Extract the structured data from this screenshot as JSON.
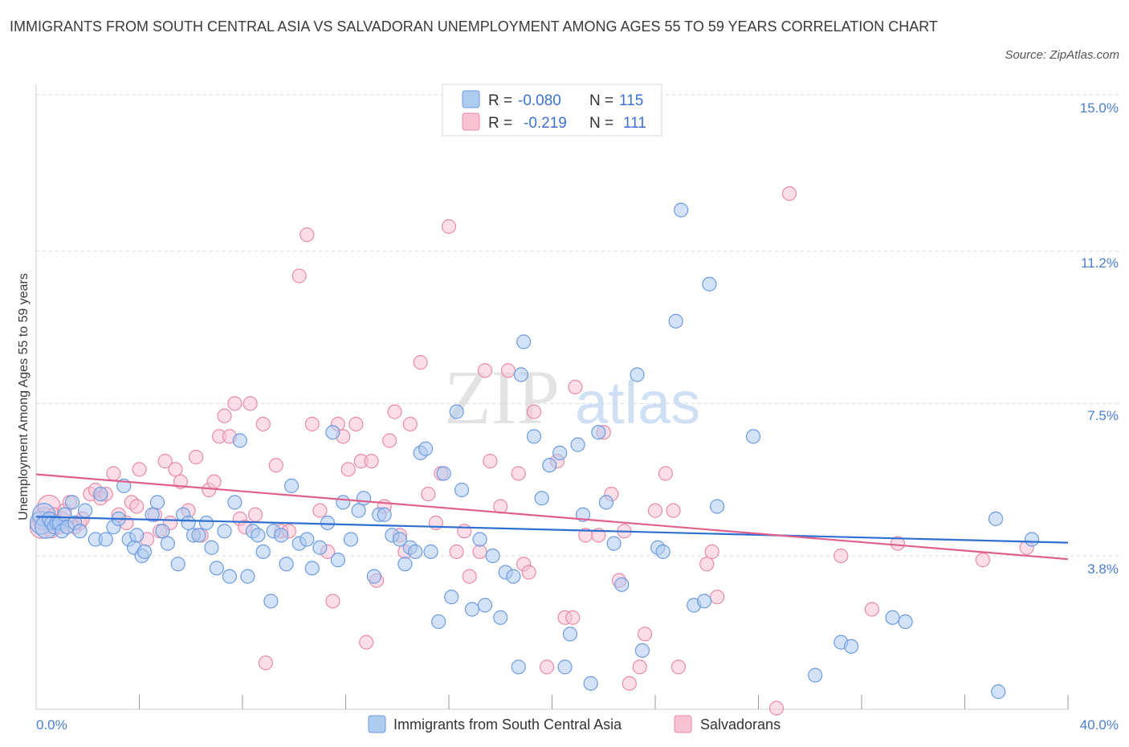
{
  "title": "IMMIGRANTS FROM SOUTH CENTRAL ASIA VS SALVADORAN UNEMPLOYMENT AMONG AGES 55 TO 59 YEARS CORRELATION CHART",
  "source": "Source: ZipAtlas.com",
  "watermark": {
    "zip": "ZIP",
    "atlas": "atlas"
  },
  "colors": {
    "blue_fill": "#aecbf0",
    "blue_stroke": "#6b9be0",
    "blue_line": "#2f6fd1",
    "pink_fill": "#f7c3d3",
    "pink_stroke": "#e88aa8",
    "pink_line": "#e0608d",
    "tick_text": "#4a7fd0",
    "grid": "#d8d8d8"
  },
  "legend": {
    "row1": {
      "r_label": "R =",
      "r_value": "-0.080",
      "n_label": "N =",
      "n_value": "115"
    },
    "row2": {
      "r_label": "R =",
      "r_value": "-0.219",
      "n_label": "N =",
      "n_value": "111"
    }
  },
  "chart_data": {
    "type": "scatter",
    "title": "IMMIGRANTS FROM SOUTH CENTRAL ASIA VS SALVADORAN UNEMPLOYMENT AMONG AGES 55 TO 59 YEARS CORRELATION CHART",
    "xlabel": "",
    "ylabel": "Unemployment Among Ages 55 to 59 years",
    "xlim": [
      0,
      40
    ],
    "ylim": [
      0,
      15.5
    ],
    "x_tick_labels": [
      "0.0%",
      "40.0%"
    ],
    "y_ticks": [
      3.8,
      7.5,
      11.2,
      15.0
    ],
    "y_tick_labels": [
      "3.8%",
      "7.5%",
      "11.2%",
      "15.0%"
    ],
    "series": [
      {
        "name": "Immigrants from South Central Asia",
        "r": -0.08,
        "n": 115,
        "trend": {
          "x": [
            0,
            40
          ],
          "y": [
            4.75,
            4.12
          ]
        },
        "points": [
          [
            0.2,
            4.6
          ],
          [
            0.3,
            4.8
          ],
          [
            0.4,
            4.5
          ],
          [
            0.5,
            4.7
          ],
          [
            0.6,
            4.6
          ],
          [
            0.7,
            4.5
          ],
          [
            0.8,
            4.6
          ],
          [
            0.9,
            4.6
          ],
          [
            1.0,
            4.4
          ],
          [
            1.1,
            4.8
          ],
          [
            1.2,
            4.5
          ],
          [
            1.4,
            5.1
          ],
          [
            1.5,
            4.6
          ],
          [
            1.7,
            4.4
          ],
          [
            1.9,
            4.9
          ],
          [
            2.3,
            4.2
          ],
          [
            2.5,
            5.3
          ],
          [
            2.7,
            4.2
          ],
          [
            3.0,
            4.5
          ],
          [
            3.2,
            4.7
          ],
          [
            3.4,
            5.5
          ],
          [
            3.6,
            4.2
          ],
          [
            3.8,
            4.0
          ],
          [
            3.9,
            4.3
          ],
          [
            4.1,
            3.8
          ],
          [
            4.2,
            3.9
          ],
          [
            4.5,
            4.8
          ],
          [
            4.7,
            5.1
          ],
          [
            4.9,
            4.4
          ],
          [
            5.1,
            4.1
          ],
          [
            5.5,
            3.6
          ],
          [
            5.7,
            4.8
          ],
          [
            5.9,
            4.6
          ],
          [
            6.1,
            4.3
          ],
          [
            6.3,
            4.3
          ],
          [
            6.6,
            4.6
          ],
          [
            6.8,
            4.0
          ],
          [
            7.0,
            3.5
          ],
          [
            7.3,
            4.4
          ],
          [
            7.5,
            3.3
          ],
          [
            7.7,
            5.1
          ],
          [
            7.9,
            6.6
          ],
          [
            8.2,
            3.3
          ],
          [
            8.4,
            4.4
          ],
          [
            8.6,
            4.3
          ],
          [
            8.8,
            3.9
          ],
          [
            9.1,
            2.7
          ],
          [
            9.2,
            4.4
          ],
          [
            9.5,
            4.3
          ],
          [
            9.7,
            3.6
          ],
          [
            9.9,
            5.5
          ],
          [
            10.2,
            4.1
          ],
          [
            10.5,
            4.2
          ],
          [
            10.7,
            3.5
          ],
          [
            11.0,
            4.0
          ],
          [
            11.3,
            4.6
          ],
          [
            11.5,
            6.8
          ],
          [
            11.7,
            3.7
          ],
          [
            11.9,
            5.1
          ],
          [
            12.2,
            4.2
          ],
          [
            12.5,
            4.9
          ],
          [
            12.7,
            5.2
          ],
          [
            13.1,
            3.3
          ],
          [
            13.3,
            4.8
          ],
          [
            13.5,
            4.8
          ],
          [
            13.8,
            4.3
          ],
          [
            14.1,
            4.2
          ],
          [
            14.3,
            3.6
          ],
          [
            14.5,
            4.0
          ],
          [
            14.7,
            3.9
          ],
          [
            14.9,
            6.3
          ],
          [
            15.1,
            6.4
          ],
          [
            15.3,
            3.9
          ],
          [
            15.6,
            2.2
          ],
          [
            15.8,
            5.8
          ],
          [
            16.1,
            2.8
          ],
          [
            16.3,
            7.3
          ],
          [
            16.5,
            5.4
          ],
          [
            16.9,
            2.5
          ],
          [
            17.2,
            4.2
          ],
          [
            17.4,
            2.6
          ],
          [
            17.7,
            3.8
          ],
          [
            18.0,
            2.3
          ],
          [
            18.2,
            3.4
          ],
          [
            18.8,
            8.2
          ],
          [
            18.5,
            3.3
          ],
          [
            18.9,
            9.0
          ],
          [
            19.3,
            6.7
          ],
          [
            19.6,
            5.2
          ],
          [
            18.7,
            1.1
          ],
          [
            19.9,
            6.0
          ],
          [
            20.3,
            6.3
          ],
          [
            20.5,
            1.1
          ],
          [
            20.7,
            1.9
          ],
          [
            21.2,
            4.8
          ],
          [
            21.0,
            6.5
          ],
          [
            21.5,
            0.7
          ],
          [
            21.8,
            6.8
          ],
          [
            22.1,
            5.1
          ],
          [
            22.4,
            4.1
          ],
          [
            22.7,
            3.1
          ],
          [
            23.3,
            8.2
          ],
          [
            23.5,
            1.5
          ],
          [
            24.1,
            4.0
          ],
          [
            24.3,
            3.9
          ],
          [
            25.0,
            12.2
          ],
          [
            24.8,
            9.5
          ],
          [
            26.1,
            10.4
          ],
          [
            25.5,
            2.6
          ],
          [
            25.9,
            2.7
          ],
          [
            26.4,
            5.0
          ],
          [
            27.8,
            6.7
          ],
          [
            30.2,
            0.9
          ],
          [
            31.2,
            1.7
          ],
          [
            31.6,
            1.6
          ],
          [
            33.2,
            2.3
          ],
          [
            33.7,
            2.2
          ],
          [
            37.2,
            4.7
          ],
          [
            37.3,
            0.5
          ],
          [
            38.6,
            4.2
          ]
        ]
      },
      {
        "name": "Salvadorans",
        "r": -0.219,
        "n": 111,
        "trend": {
          "x": [
            0,
            40
          ],
          "y": [
            5.78,
            3.72
          ]
        },
        "points": [
          [
            0.2,
            4.5
          ],
          [
            0.3,
            4.7
          ],
          [
            0.5,
            5.0
          ],
          [
            0.6,
            4.4
          ],
          [
            0.7,
            4.8
          ],
          [
            0.8,
            4.6
          ],
          [
            0.9,
            4.5
          ],
          [
            1.0,
            4.7
          ],
          [
            1.1,
            4.9
          ],
          [
            1.3,
            5.1
          ],
          [
            1.5,
            4.5
          ],
          [
            1.7,
            4.6
          ],
          [
            1.8,
            4.7
          ],
          [
            2.1,
            5.3
          ],
          [
            2.3,
            5.4
          ],
          [
            2.5,
            5.2
          ],
          [
            2.7,
            5.3
          ],
          [
            3.0,
            5.8
          ],
          [
            3.2,
            4.8
          ],
          [
            3.5,
            4.6
          ],
          [
            3.7,
            5.1
          ],
          [
            3.9,
            5.0
          ],
          [
            4.0,
            5.9
          ],
          [
            4.3,
            4.2
          ],
          [
            4.6,
            4.8
          ],
          [
            4.8,
            4.4
          ],
          [
            5.0,
            6.1
          ],
          [
            5.2,
            4.6
          ],
          [
            5.4,
            5.9
          ],
          [
            5.6,
            5.6
          ],
          [
            5.9,
            4.9
          ],
          [
            6.2,
            6.2
          ],
          [
            6.4,
            4.3
          ],
          [
            6.7,
            5.4
          ],
          [
            6.9,
            5.6
          ],
          [
            7.1,
            6.7
          ],
          [
            7.3,
            7.2
          ],
          [
            7.5,
            6.7
          ],
          [
            7.7,
            7.5
          ],
          [
            7.9,
            4.7
          ],
          [
            8.1,
            4.5
          ],
          [
            8.3,
            7.5
          ],
          [
            8.5,
            4.8
          ],
          [
            8.8,
            7.0
          ],
          [
            8.9,
            1.2
          ],
          [
            9.3,
            6.0
          ],
          [
            9.5,
            4.4
          ],
          [
            9.8,
            4.4
          ],
          [
            10.2,
            10.6
          ],
          [
            10.5,
            11.6
          ],
          [
            10.7,
            7.0
          ],
          [
            11.0,
            4.9
          ],
          [
            11.3,
            3.9
          ],
          [
            11.5,
            2.7
          ],
          [
            11.7,
            7.0
          ],
          [
            11.9,
            6.7
          ],
          [
            12.1,
            5.9
          ],
          [
            12.4,
            7.0
          ],
          [
            12.6,
            6.1
          ],
          [
            12.8,
            1.7
          ],
          [
            13.0,
            6.1
          ],
          [
            13.2,
            3.2
          ],
          [
            13.5,
            5.0
          ],
          [
            13.7,
            6.6
          ],
          [
            13.9,
            7.3
          ],
          [
            14.1,
            4.3
          ],
          [
            14.3,
            3.9
          ],
          [
            14.5,
            7.0
          ],
          [
            14.9,
            8.5
          ],
          [
            15.2,
            5.3
          ],
          [
            15.5,
            4.6
          ],
          [
            15.7,
            5.8
          ],
          [
            16.0,
            11.8
          ],
          [
            16.3,
            3.9
          ],
          [
            16.6,
            4.4
          ],
          [
            16.8,
            3.3
          ],
          [
            17.2,
            3.9
          ],
          [
            17.4,
            8.3
          ],
          [
            17.6,
            6.1
          ],
          [
            18.0,
            5.0
          ],
          [
            18.3,
            8.3
          ],
          [
            18.7,
            5.8
          ],
          [
            18.9,
            3.6
          ],
          [
            19.1,
            3.4
          ],
          [
            19.3,
            7.3
          ],
          [
            19.8,
            1.1
          ],
          [
            20.2,
            6.1
          ],
          [
            20.5,
            2.3
          ],
          [
            20.8,
            2.3
          ],
          [
            20.9,
            7.9
          ],
          [
            21.3,
            4.3
          ],
          [
            21.8,
            4.3
          ],
          [
            22.0,
            6.8
          ],
          [
            22.3,
            5.3
          ],
          [
            22.6,
            3.2
          ],
          [
            22.8,
            4.4
          ],
          [
            23.0,
            0.7
          ],
          [
            23.4,
            1.1
          ],
          [
            23.6,
            1.9
          ],
          [
            24.0,
            4.9
          ],
          [
            24.4,
            5.8
          ],
          [
            24.7,
            4.9
          ],
          [
            24.9,
            1.1
          ],
          [
            26.0,
            3.6
          ],
          [
            26.2,
            3.9
          ],
          [
            26.4,
            2.8
          ],
          [
            28.7,
            0.1
          ],
          [
            29.2,
            12.6
          ],
          [
            31.2,
            3.8
          ],
          [
            32.4,
            2.5
          ],
          [
            33.4,
            4.1
          ],
          [
            36.7,
            3.7
          ],
          [
            38.4,
            4.0
          ]
        ]
      }
    ]
  },
  "bottom_legend": {
    "series1": "Immigrants from South Central Asia",
    "series2": "Salvadorans"
  },
  "axis": {
    "ylabel": "Unemployment Among Ages 55 to 59 years",
    "x_left": "0.0%",
    "x_right": "40.0%",
    "y_ticks": [
      "3.8%",
      "7.5%",
      "11.2%",
      "15.0%"
    ]
  }
}
